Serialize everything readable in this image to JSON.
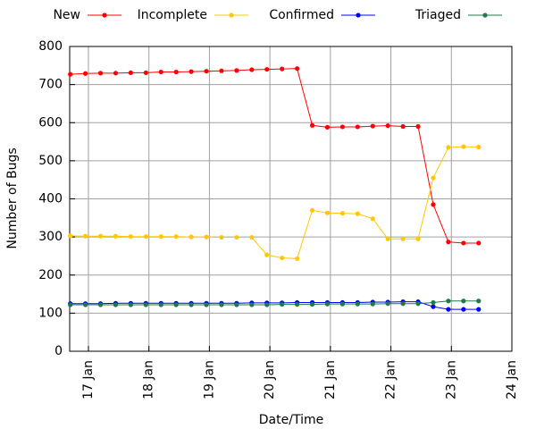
{
  "chart_data": {
    "type": "line",
    "x_label": "Date/Time",
    "y_label": "Number of Bugs",
    "x": [
      16.7,
      16.95,
      17.2,
      17.45,
      17.7,
      17.95,
      18.2,
      18.45,
      18.7,
      18.95,
      19.2,
      19.45,
      19.7,
      19.95,
      20.2,
      20.45,
      20.7,
      20.95,
      21.2,
      21.45,
      21.7,
      21.95,
      22.2,
      22.45,
      22.7,
      22.95,
      23.2,
      23.45
    ],
    "xlim": [
      16.69,
      24
    ],
    "xticks": [
      {
        "value": 17,
        "label": "17 Jan"
      },
      {
        "value": 18,
        "label": "18 Jan"
      },
      {
        "value": 19,
        "label": "19 Jan"
      },
      {
        "value": 20,
        "label": "20 Jan"
      },
      {
        "value": 21,
        "label": "21 Jan"
      },
      {
        "value": 22,
        "label": "22 Jan"
      },
      {
        "value": 23,
        "label": "23 Jan"
      },
      {
        "value": 24,
        "label": "24 Jan"
      }
    ],
    "ylim": [
      0,
      800
    ],
    "yticks": [
      0,
      100,
      200,
      300,
      400,
      500,
      600,
      700,
      800
    ],
    "grid": true,
    "legend": "top",
    "series": [
      {
        "name": "New",
        "color": "#ff0000",
        "values": [
          727,
          729,
          730,
          730,
          731,
          731,
          733,
          733,
          734,
          735,
          736,
          737,
          739,
          740,
          741,
          742,
          593,
          588,
          589,
          589,
          591,
          592,
          590,
          590,
          385,
          287,
          284,
          284
        ]
      },
      {
        "name": "Incomplete",
        "color": "#ffc800",
        "values": [
          303,
          302,
          302,
          302,
          301,
          301,
          301,
          301,
          300,
          300,
          299,
          299,
          299,
          253,
          245,
          243,
          370,
          363,
          362,
          361,
          348,
          295,
          295,
          295,
          455,
          535,
          537,
          536
        ]
      },
      {
        "name": "Confirmed",
        "color": "#0000ff",
        "values": [
          125,
          125,
          125,
          126,
          126,
          126,
          126,
          126,
          126,
          126,
          126,
          126,
          127,
          127,
          127,
          128,
          128,
          128,
          128,
          128,
          129,
          129,
          130,
          130,
          117,
          110,
          110,
          110
        ]
      },
      {
        "name": "Triaged",
        "color": "#1e7a4a",
        "values": [
          122,
          122,
          122,
          122,
          122,
          122,
          122,
          122,
          122,
          122,
          122,
          122,
          122,
          122,
          123,
          123,
          123,
          124,
          124,
          124,
          124,
          125,
          125,
          125,
          128,
          132,
          132,
          132
        ]
      }
    ]
  }
}
